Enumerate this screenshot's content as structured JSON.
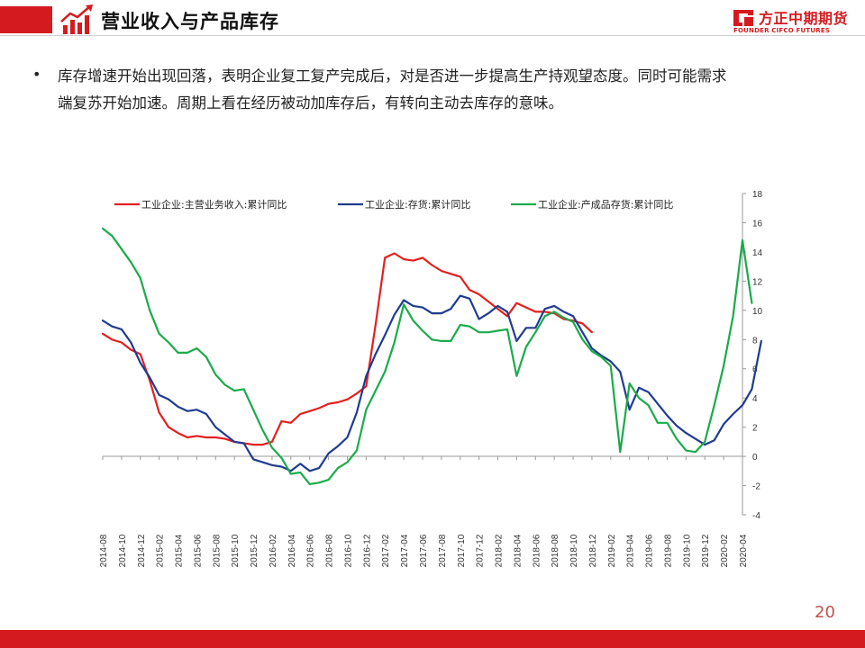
{
  "slide": {
    "title": "营业收入与产品库存",
    "bullet_line1": "库存增速开始出现回落，表明企业复工复产完成后，对是否进一步提高生产持观望态度。同时可能需求",
    "bullet_line2": "端复苏开始加速。周期上看在经历被动加库存后，有转向主动去库存的意味。",
    "page_number": "20"
  },
  "logo": {
    "cn": "方正中期期货",
    "en": "FOUNDER CIFCO FUTURES"
  },
  "colors": {
    "brand_red": "#d51a1f",
    "series_red": "#e41f1f",
    "series_blue": "#1f3c8f",
    "series_green": "#1aab4b"
  },
  "icons": [
    "growth-chart-icon",
    "founder-logo-icon"
  ],
  "chart_data": {
    "type": "line",
    "x_tick_labels": [
      "2014-08",
      "2014-10",
      "2014-12",
      "2015-02",
      "2015-04",
      "2015-06",
      "2015-08",
      "2015-10",
      "2015-12",
      "2016-02",
      "2016-04",
      "2016-06",
      "2016-08",
      "2016-10",
      "2016-12",
      "2017-02",
      "2017-04",
      "2017-06",
      "2017-08",
      "2017-10",
      "2017-12",
      "2018-02",
      "2018-04",
      "2018-06",
      "2018-08",
      "2018-10",
      "2018-12",
      "2019-02",
      "2019-04",
      "2019-06",
      "2019-08",
      "2019-10",
      "2019-12",
      "2020-02",
      "2020-04"
    ],
    "y_tick_labels": [
      "-4",
      "-2",
      "0",
      "2",
      "4",
      "6",
      "8",
      "10",
      "12",
      "14",
      "16",
      "18"
    ],
    "ylim": [
      -4,
      18
    ],
    "y_axis_side": "right",
    "legend_position": "top",
    "series": [
      {
        "name": "工业企业:主营业务收入:累计同比",
        "color": "#e41f1f",
        "points": [
          [
            "2014-08",
            8.4
          ],
          [
            "2014-09",
            8.0
          ],
          [
            "2014-10",
            7.8
          ],
          [
            "2014-11",
            7.3
          ],
          [
            "2014-12",
            7.0
          ],
          [
            "2015-01",
            5.2
          ],
          [
            "2015-02",
            3.0
          ],
          [
            "2015-03",
            2.0
          ],
          [
            "2015-04",
            1.6
          ],
          [
            "2015-05",
            1.3
          ],
          [
            "2015-06",
            1.4
          ],
          [
            "2015-07",
            1.3
          ],
          [
            "2015-08",
            1.3
          ],
          [
            "2015-09",
            1.2
          ],
          [
            "2015-10",
            1.0
          ],
          [
            "2015-11",
            0.9
          ],
          [
            "2015-12",
            0.8
          ],
          [
            "2016-01",
            0.8
          ],
          [
            "2016-02",
            1.0
          ],
          [
            "2016-03",
            2.4
          ],
          [
            "2016-04",
            2.3
          ],
          [
            "2016-05",
            2.9
          ],
          [
            "2016-06",
            3.1
          ],
          [
            "2016-07",
            3.3
          ],
          [
            "2016-08",
            3.6
          ],
          [
            "2016-09",
            3.7
          ],
          [
            "2016-10",
            3.9
          ],
          [
            "2016-11",
            4.3
          ],
          [
            "2016-12",
            4.8
          ],
          [
            "2017-01",
            9.0
          ],
          [
            "2017-02",
            13.6
          ],
          [
            "2017-03",
            13.9
          ],
          [
            "2017-04",
            13.5
          ],
          [
            "2017-05",
            13.4
          ],
          [
            "2017-06",
            13.6
          ],
          [
            "2017-07",
            13.1
          ],
          [
            "2017-08",
            12.7
          ],
          [
            "2017-09",
            12.5
          ],
          [
            "2017-10",
            12.3
          ],
          [
            "2017-11",
            11.4
          ],
          [
            "2017-12",
            11.1
          ],
          [
            "2018-01",
            10.6
          ],
          [
            "2018-02",
            10.1
          ],
          [
            "2018-03",
            9.6
          ],
          [
            "2018-04",
            10.5
          ],
          [
            "2018-05",
            10.2
          ],
          [
            "2018-06",
            9.9
          ],
          [
            "2018-07",
            9.9
          ],
          [
            "2018-08",
            9.8
          ],
          [
            "2018-09",
            9.4
          ],
          [
            "2018-10",
            9.3
          ],
          [
            "2018-11",
            9.1
          ],
          [
            "2018-12",
            8.5
          ]
        ]
      },
      {
        "name": "工业企业:存货:累计同比",
        "color": "#1f3c8f",
        "points": [
          [
            "2014-08",
            9.3
          ],
          [
            "2014-09",
            8.9
          ],
          [
            "2014-10",
            8.7
          ],
          [
            "2014-11",
            7.8
          ],
          [
            "2014-12",
            6.4
          ],
          [
            "2015-01",
            5.4
          ],
          [
            "2015-02",
            4.2
          ],
          [
            "2015-03",
            3.9
          ],
          [
            "2015-04",
            3.4
          ],
          [
            "2015-05",
            3.1
          ],
          [
            "2015-06",
            3.2
          ],
          [
            "2015-07",
            2.9
          ],
          [
            "2015-08",
            2.0
          ],
          [
            "2015-09",
            1.5
          ],
          [
            "2015-10",
            1.0
          ],
          [
            "2015-11",
            0.9
          ],
          [
            "2015-12",
            -0.2
          ],
          [
            "2016-01",
            -0.4
          ],
          [
            "2016-02",
            -0.6
          ],
          [
            "2016-03",
            -0.7
          ],
          [
            "2016-04",
            -1.0
          ],
          [
            "2016-05",
            -0.5
          ],
          [
            "2016-06",
            -1.0
          ],
          [
            "2016-07",
            -0.8
          ],
          [
            "2016-08",
            0.2
          ],
          [
            "2016-09",
            0.7
          ],
          [
            "2016-10",
            1.3
          ],
          [
            "2016-11",
            3.0
          ],
          [
            "2016-12",
            5.5
          ],
          [
            "2017-01",
            7.0
          ],
          [
            "2017-02",
            8.3
          ],
          [
            "2017-03",
            9.7
          ],
          [
            "2017-04",
            10.7
          ],
          [
            "2017-05",
            10.3
          ],
          [
            "2017-06",
            10.2
          ],
          [
            "2017-07",
            9.8
          ],
          [
            "2017-08",
            9.8
          ],
          [
            "2017-09",
            10.1
          ],
          [
            "2017-10",
            11.0
          ],
          [
            "2017-11",
            10.8
          ],
          [
            "2017-12",
            9.4
          ],
          [
            "2018-01",
            9.8
          ],
          [
            "2018-02",
            10.3
          ],
          [
            "2018-03",
            9.9
          ],
          [
            "2018-04",
            7.9
          ],
          [
            "2018-05",
            8.8
          ],
          [
            "2018-06",
            8.8
          ],
          [
            "2018-07",
            10.1
          ],
          [
            "2018-08",
            10.3
          ],
          [
            "2018-09",
            9.9
          ],
          [
            "2018-10",
            9.6
          ],
          [
            "2018-11",
            8.5
          ],
          [
            "2018-12",
            7.4
          ],
          [
            "2019-01",
            6.9
          ],
          [
            "2019-02",
            6.5
          ],
          [
            "2019-03",
            5.8
          ],
          [
            "2019-04",
            3.2
          ],
          [
            "2019-05",
            4.7
          ],
          [
            "2019-06",
            4.4
          ],
          [
            "2019-07",
            3.6
          ],
          [
            "2019-08",
            2.8
          ],
          [
            "2019-09",
            2.1
          ],
          [
            "2019-10",
            1.6
          ],
          [
            "2019-11",
            1.2
          ],
          [
            "2019-12",
            0.8
          ],
          [
            "2020-01",
            1.1
          ],
          [
            "2020-02",
            2.2
          ],
          [
            "2020-03",
            2.9
          ],
          [
            "2020-04",
            3.5
          ],
          [
            "2020-05",
            4.6
          ],
          [
            "2020-06",
            7.9
          ]
        ]
      },
      {
        "name": "工业企业:产成品存货:累计同比",
        "color": "#1aab4b",
        "points": [
          [
            "2014-08",
            15.6
          ],
          [
            "2014-09",
            15.1
          ],
          [
            "2014-10",
            14.2
          ],
          [
            "2014-11",
            13.3
          ],
          [
            "2014-12",
            12.2
          ],
          [
            "2015-01",
            10.0
          ],
          [
            "2015-02",
            8.4
          ],
          [
            "2015-03",
            7.8
          ],
          [
            "2015-04",
            7.1
          ],
          [
            "2015-05",
            7.1
          ],
          [
            "2015-06",
            7.4
          ],
          [
            "2015-07",
            6.8
          ],
          [
            "2015-08",
            5.6
          ],
          [
            "2015-09",
            4.9
          ],
          [
            "2015-10",
            4.5
          ],
          [
            "2015-11",
            4.6
          ],
          [
            "2015-12",
            3.2
          ],
          [
            "2016-01",
            1.8
          ],
          [
            "2016-02",
            0.6
          ],
          [
            "2016-03",
            -0.1
          ],
          [
            "2016-04",
            -1.2
          ],
          [
            "2016-05",
            -1.1
          ],
          [
            "2016-06",
            -1.9
          ],
          [
            "2016-07",
            -1.8
          ],
          [
            "2016-08",
            -1.6
          ],
          [
            "2016-09",
            -0.8
          ],
          [
            "2016-10",
            -0.4
          ],
          [
            "2016-11",
            0.4
          ],
          [
            "2016-12",
            3.2
          ],
          [
            "2017-01",
            4.5
          ],
          [
            "2017-02",
            5.8
          ],
          [
            "2017-03",
            7.8
          ],
          [
            "2017-04",
            10.4
          ],
          [
            "2017-05",
            9.3
          ],
          [
            "2017-06",
            8.6
          ],
          [
            "2017-07",
            8.0
          ],
          [
            "2017-08",
            7.9
          ],
          [
            "2017-09",
            7.9
          ],
          [
            "2017-10",
            9.0
          ],
          [
            "2017-11",
            8.9
          ],
          [
            "2017-12",
            8.5
          ],
          [
            "2018-01",
            8.5
          ],
          [
            "2018-02",
            8.6
          ],
          [
            "2018-03",
            8.7
          ],
          [
            "2018-04",
            5.5
          ],
          [
            "2018-05",
            7.5
          ],
          [
            "2018-06",
            8.5
          ],
          [
            "2018-07",
            9.6
          ],
          [
            "2018-08",
            9.9
          ],
          [
            "2018-09",
            9.5
          ],
          [
            "2018-10",
            9.2
          ],
          [
            "2018-11",
            8.0
          ],
          [
            "2018-12",
            7.2
          ],
          [
            "2019-01",
            6.8
          ],
          [
            "2019-02",
            6.2
          ],
          [
            "2019-03",
            0.3
          ],
          [
            "2019-04",
            5.0
          ],
          [
            "2019-05",
            4.0
          ],
          [
            "2019-06",
            3.5
          ],
          [
            "2019-07",
            2.3
          ],
          [
            "2019-08",
            2.3
          ],
          [
            "2019-09",
            1.2
          ],
          [
            "2019-10",
            0.4
          ],
          [
            "2019-11",
            0.3
          ],
          [
            "2019-12",
            1.0
          ],
          [
            "2020-01",
            3.5
          ],
          [
            "2020-02",
            6.2
          ],
          [
            "2020-03",
            9.6
          ],
          [
            "2020-04",
            14.8
          ],
          [
            "2020-05",
            10.5
          ]
        ]
      }
    ]
  }
}
